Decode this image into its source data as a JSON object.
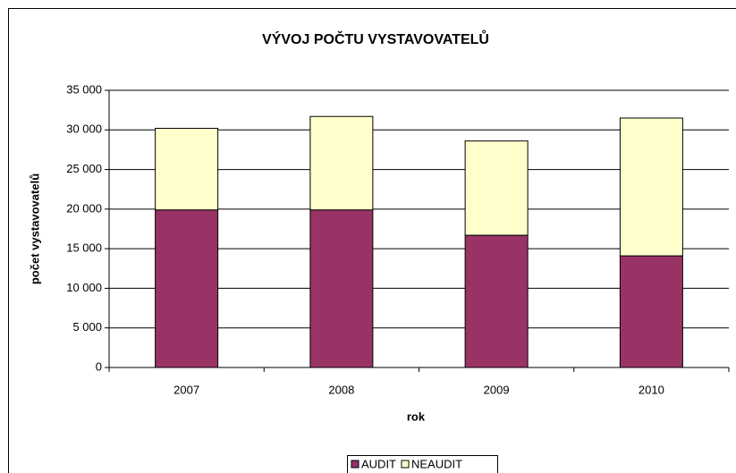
{
  "chart_data": {
    "type": "bar",
    "stacked": true,
    "title": "VÝVOJ POČTU VYSTAVOVATELŮ",
    "x_label": "rok",
    "y_label": "počet vystavovatelů",
    "categories": [
      "2007",
      "2008",
      "2009",
      "2010"
    ],
    "series": [
      {
        "name": "AUDIT",
        "color": "#993366",
        "values": [
          19900,
          19900,
          16700,
          14100
        ]
      },
      {
        "name": "NEAUDIT",
        "color": "#ffffcc",
        "values": [
          10300,
          11800,
          11900,
          17400
        ]
      }
    ],
    "ylim": [
      0,
      35000
    ],
    "yticks": [
      0,
      {
        "value": 5000,
        "label": "5 000"
      },
      {
        "value": 10000,
        "label": "10 000"
      },
      {
        "value": 15000,
        "label": "15 000"
      },
      {
        "value": 20000,
        "label": "20 000"
      },
      {
        "value": 25000,
        "label": "25 000"
      },
      {
        "value": 30000,
        "label": "30 000"
      },
      {
        "value": 35000,
        "label": "35 000"
      }
    ],
    "grid": true,
    "legend": "bottom"
  }
}
